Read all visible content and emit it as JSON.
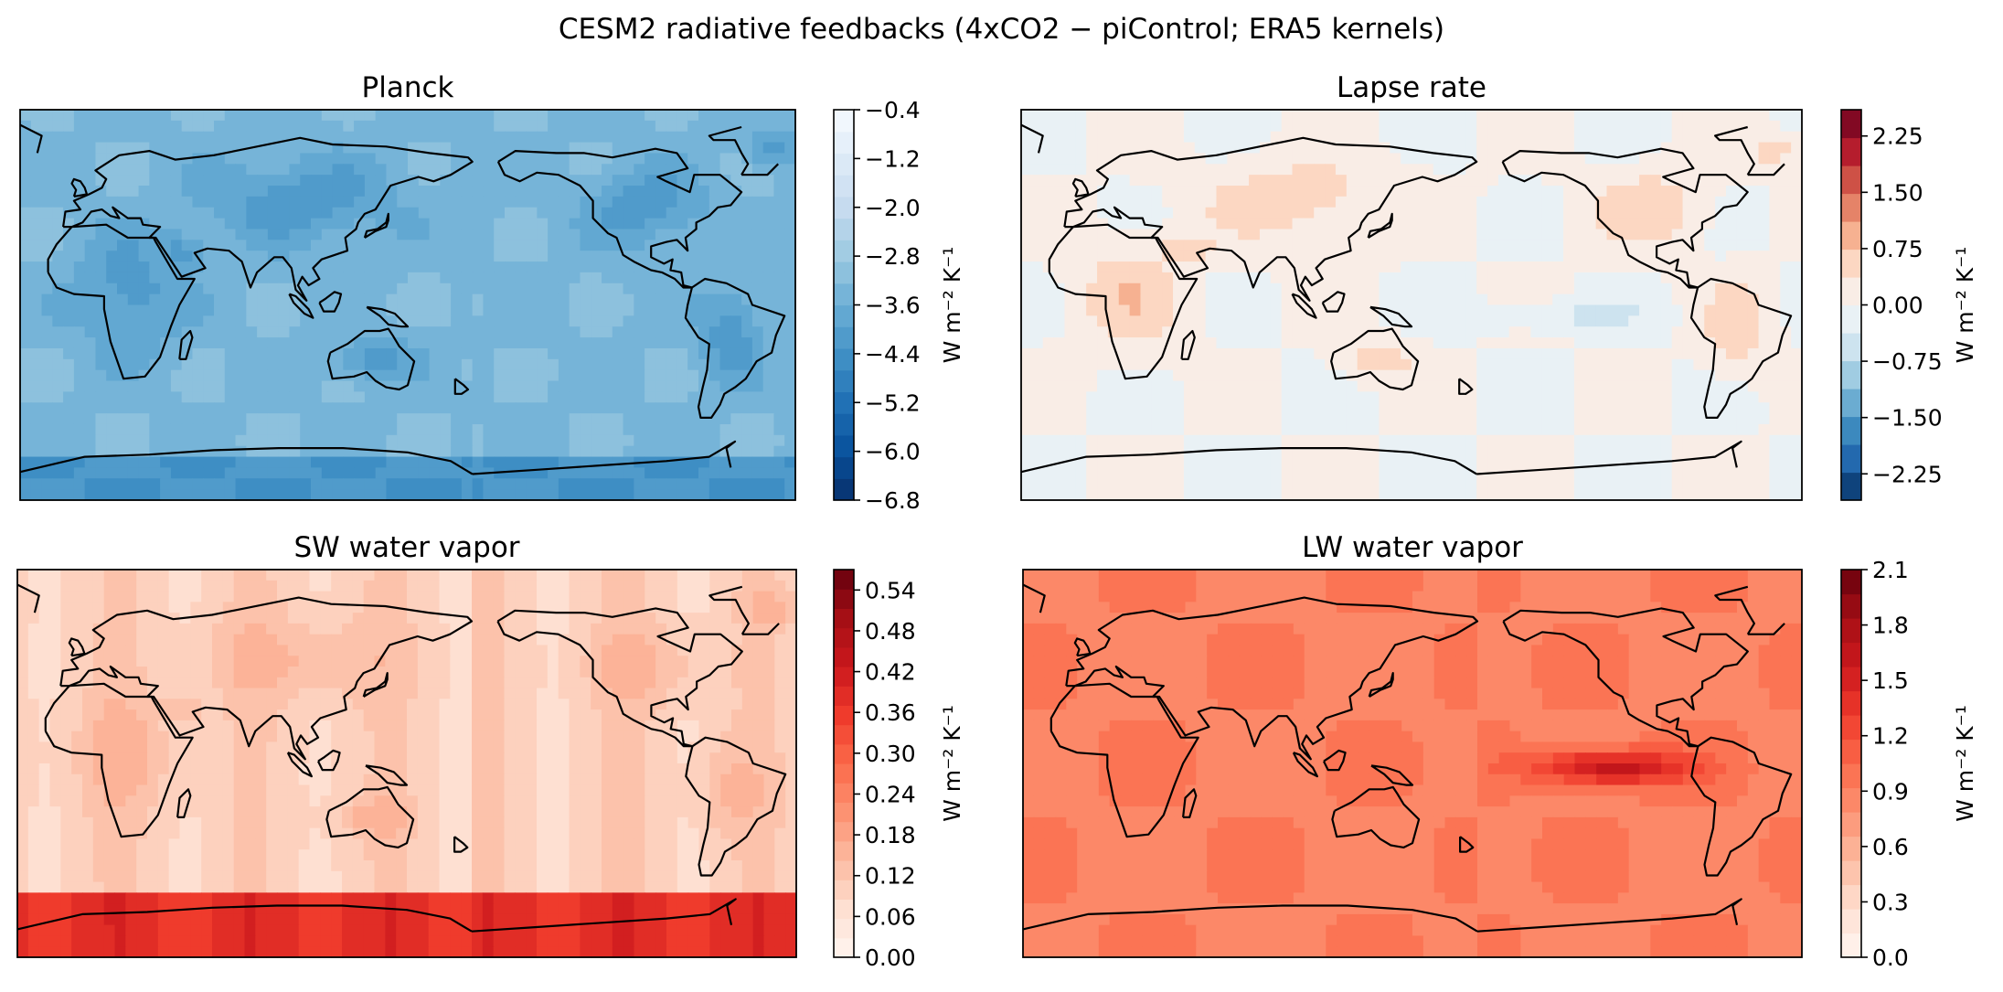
{
  "figure": {
    "suptitle": "CESM2 radiative feedbacks (4xCO2 − piControl; ERA5 kernels)"
  },
  "colormaps": {
    "Blues_r": [
      "#08306b",
      "#08519c",
      "#2171b5",
      "#4292c6",
      "#6baed6",
      "#9ecae1",
      "#c6dbef",
      "#deebf7",
      "#f7fbff"
    ],
    "RdBu_r": [
      "#053061",
      "#2166ac",
      "#4393c3",
      "#92c5de",
      "#d1e5f0",
      "#f7f7f7",
      "#fddbc7",
      "#f4a582",
      "#d6604d",
      "#b2182b",
      "#67001f"
    ],
    "Reds": [
      "#fff5f0",
      "#fee0d2",
      "#fcbba1",
      "#fc9272",
      "#fb6a4a",
      "#ef3b2c",
      "#cb181d",
      "#a50f15",
      "#67000d"
    ]
  },
  "chart_data": [
    {
      "type": "heatmap",
      "title": "Planck",
      "cmap": "Blues_r",
      "colorbar_label": "W m⁻² K⁻¹",
      "vlim": [
        -6.8,
        -0.4
      ],
      "ticks": [
        -0.4,
        -1.2,
        -2.0,
        -2.8,
        -3.6,
        -4.4,
        -5.2,
        -6.0,
        -6.8
      ],
      "tick_labels": [
        "−0.4",
        "−1.2",
        "−2.0",
        "−2.8",
        "−3.6",
        "−4.4",
        "−5.2",
        "−6.0",
        "−6.8"
      ]
    },
    {
      "type": "heatmap",
      "title": "Lapse rate",
      "cmap": "RdBu_r",
      "colorbar_label": "W m⁻² K⁻¹",
      "vlim": [
        -2.6,
        2.6
      ],
      "ticks": [
        2.25,
        1.5,
        0.75,
        0.0,
        -0.75,
        -1.5,
        -2.25
      ],
      "tick_labels": [
        "2.25",
        "1.50",
        "0.75",
        "0.00",
        "−0.75",
        "−1.50",
        "−2.25"
      ]
    },
    {
      "type": "heatmap",
      "title": "SW water vapor",
      "cmap": "Reds",
      "colorbar_label": "W m⁻² K⁻¹",
      "vlim": [
        0.0,
        0.57
      ],
      "ticks": [
        0.54,
        0.48,
        0.42,
        0.36,
        0.3,
        0.24,
        0.18,
        0.12,
        0.06,
        0.0
      ],
      "tick_labels": [
        "0.54",
        "0.48",
        "0.42",
        "0.36",
        "0.30",
        "0.24",
        "0.18",
        "0.12",
        "0.06",
        "0.00"
      ]
    },
    {
      "type": "heatmap",
      "title": "LW water vapor",
      "cmap": "Reds",
      "colorbar_label": "W m⁻² K⁻¹",
      "vlim": [
        0.0,
        2.1
      ],
      "ticks": [
        2.1,
        1.8,
        1.5,
        1.2,
        0.9,
        0.6,
        0.3,
        0.0
      ],
      "tick_labels": [
        "2.1",
        "1.8",
        "1.5",
        "1.2",
        "0.9",
        "0.6",
        "0.3",
        "0.0"
      ]
    }
  ]
}
